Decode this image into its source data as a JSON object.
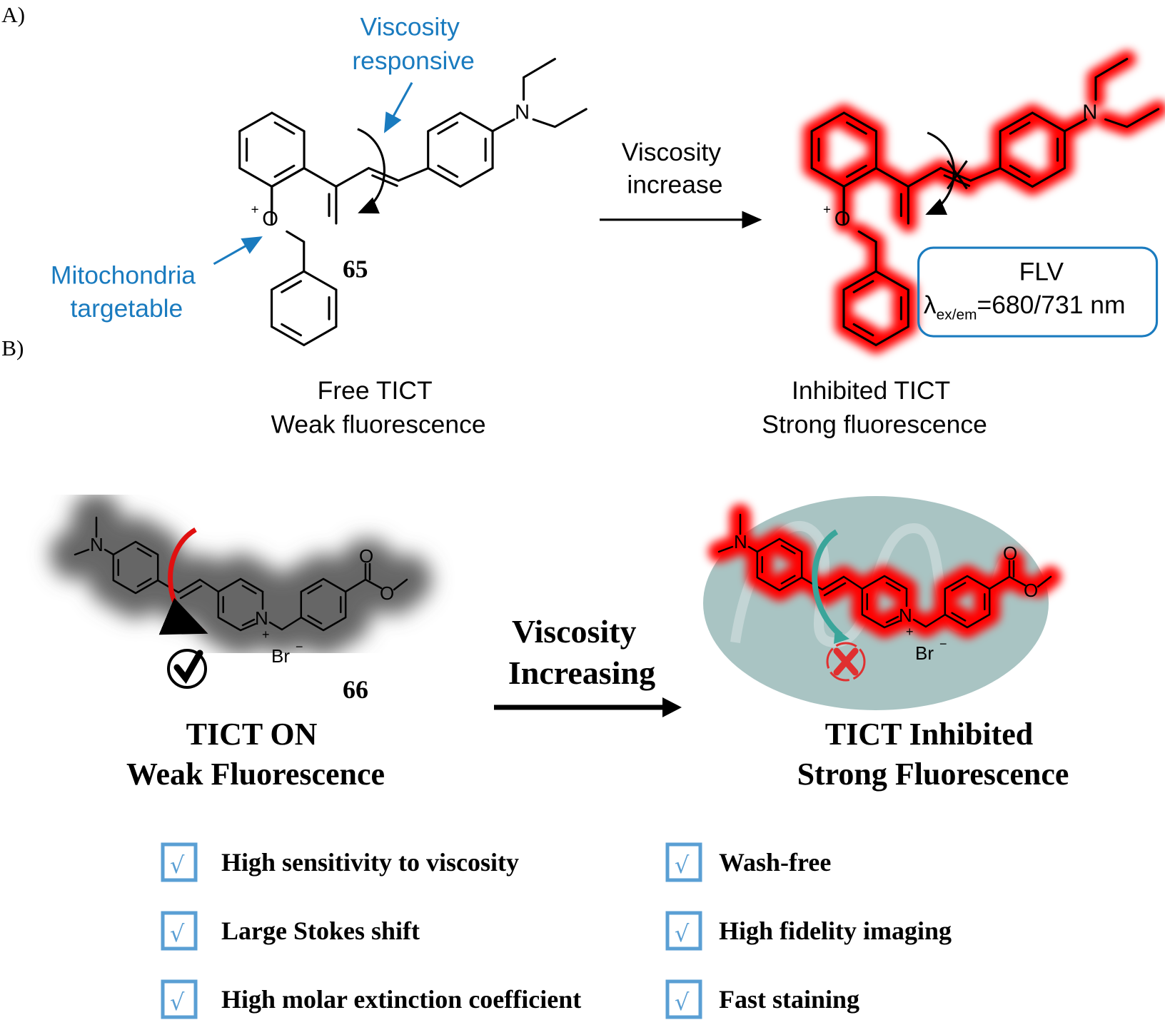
{
  "panel_a": {
    "label": "A)",
    "annotation_viscosity": [
      "Viscosity",
      "responsive"
    ],
    "annotation_mito": [
      "Mitochondria",
      "targetable"
    ],
    "compound_number": "65",
    "arrow_label": [
      "Viscosity",
      "increase"
    ],
    "left_caption": [
      "Free TICT",
      "Weak fluorescence"
    ],
    "right_caption": [
      "Inhibited TICT",
      "Strong fluorescence"
    ],
    "probe_box": {
      "name": "FLV",
      "lambda": "λ",
      "subscript": "ex/em",
      "value": "=680/731 nm"
    },
    "atoms": {
      "oxygen": "O",
      "plus": "+",
      "nitrogen": "N"
    }
  },
  "panel_b": {
    "label": "B)",
    "compound_number": "66",
    "arrow_label": [
      "Viscosity",
      "Increasing"
    ],
    "left_caption": [
      "TICT ON",
      "Weak Fluorescence"
    ],
    "right_caption": [
      "TICT Inhibited",
      "Strong Fluorescence"
    ],
    "atoms": {
      "nitrogen": "N",
      "plus": "+",
      "oxygen": "O",
      "bromide": "Br",
      "minus": "−"
    },
    "features": [
      "High sensitivity to viscosity",
      "Large Stokes shift",
      "High molar extinction coefficient",
      "Wash-free",
      "High fidelity imaging",
      "Fast staining"
    ],
    "check_glyph": "√"
  },
  "colors": {
    "annotation_blue": "#1a7bbf",
    "glow_red": "#ff0000",
    "mitochondrion": "#a9c4c3",
    "checkbox_blue": "#5a9fd4",
    "teal_arrow": "#3aa59a"
  }
}
